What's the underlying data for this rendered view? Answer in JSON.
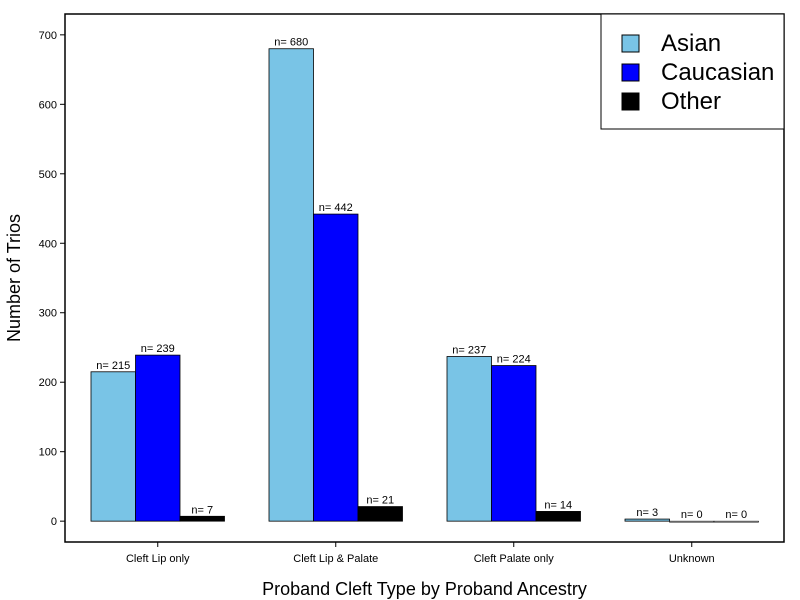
{
  "chart_data": {
    "type": "bar",
    "title": "",
    "xlabel": "Proband Cleft Type by Proband Ancestry",
    "ylabel": "Number of Trios",
    "categories": [
      "Cleft Lip only",
      "Cleft Lip & Palate",
      "Cleft Palate only",
      "Unknown"
    ],
    "series": [
      {
        "name": "Asian",
        "color": "#79c4e6",
        "values": [
          215,
          680,
          237,
          3
        ],
        "labels": [
          "n= 215",
          "n= 680",
          "n= 237",
          "n= 3"
        ]
      },
      {
        "name": "Caucasian",
        "color": "#0000ff",
        "values": [
          239,
          442,
          224,
          0
        ],
        "labels": [
          "n= 239",
          "n= 442",
          "n= 224",
          "n= 0"
        ]
      },
      {
        "name": "Other",
        "color": "#000000",
        "values": [
          7,
          21,
          14,
          0
        ],
        "labels": [
          "n= 7",
          "n= 21",
          "n= 14",
          "n= 0"
        ]
      }
    ],
    "yticks": [
      0,
      100,
      200,
      300,
      400,
      500,
      600,
      700
    ],
    "ylim": [
      -30,
      730
    ],
    "grid": false,
    "legend_position": "top-right"
  }
}
